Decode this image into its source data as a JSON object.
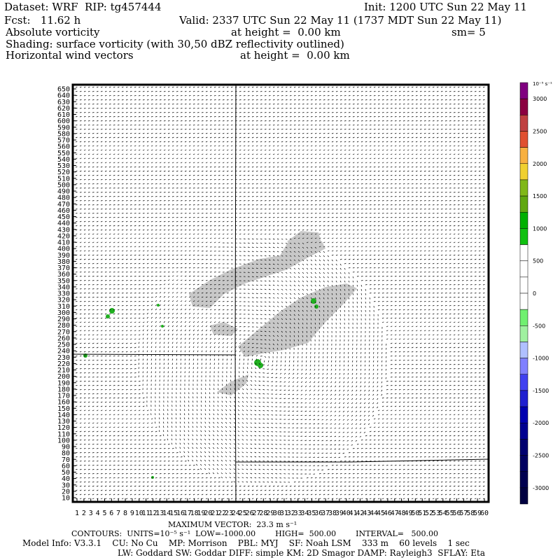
{
  "header": {
    "dataset": "Dataset: WRF  RIP: tg457444",
    "init": "Init: 1200 UTC Sun 22 May 11",
    "fcst": "Fcst:   11.62 h",
    "valid": "Valid: 2337 UTC Sun 22 May 11 (1737 MDT Sun 22 May 11)",
    "field": "Absolute vorticity",
    "field_height": "at height =  0.00 km",
    "smoothing": "sm= 5",
    "shading": "Shading: surface vorticity (with 30,50 dBZ reflectivity outlined)",
    "vectors": "Horizontal wind vectors",
    "vectors_height": "at height =  0.00 km"
  },
  "footer": {
    "max_vector": "MAXIMUM VECTOR:  23.3 m s⁻¹",
    "contours": "CONTOURS:  UNITS=10⁻⁵ s⁻¹  LOW=-1000.00        HIGH=  500.00        INTERVAL=   500.00",
    "model1": "Model Info: V3.3.1    CU: No Cu    MP: Morrison    PBL: MYJ    SF: Noah LSM    333 m    60 levels    1 sec",
    "model2": "LW: Goddard SW: Goddar DIFF: simple KM: 2D Smagor DAMP: Rayleigh3  SFLAY: Eta"
  },
  "chart_data": {
    "type": "heatmap",
    "x_range": [
      1,
      180
    ],
    "y_range": [
      10,
      650
    ],
    "y_ticks": [
      10,
      20,
      30,
      40,
      50,
      60,
      70,
      80,
      90,
      100,
      110,
      120,
      130,
      140,
      150,
      160,
      170,
      180,
      190,
      200,
      210,
      220,
      230,
      240,
      250,
      260,
      270,
      280,
      290,
      300,
      310,
      320,
      330,
      340,
      350,
      360,
      370,
      380,
      390,
      400,
      410,
      420,
      430,
      440,
      450,
      460,
      470,
      480,
      490,
      500,
      510,
      520,
      530,
      540,
      550,
      560,
      570,
      580,
      590,
      600,
      610,
      620,
      630,
      640,
      650
    ],
    "x_ticks": [
      1,
      2,
      3,
      4,
      5,
      6,
      7,
      8,
      9,
      10,
      11,
      12,
      13,
      14,
      15,
      16,
      17,
      18,
      19,
      20,
      21,
      22,
      23,
      24,
      25,
      26,
      27,
      28,
      29,
      30,
      31,
      32,
      33,
      34,
      35,
      36,
      37,
      38,
      39,
      40,
      41,
      42,
      43,
      44,
      45,
      46,
      47,
      48,
      49,
      50,
      51,
      52,
      53,
      54,
      55,
      56,
      57,
      58,
      59,
      60
    ],
    "x_ticks_label_note": "",
    "colorbar": {
      "unit": "10⁻⁵ s⁻¹",
      "levels": [
        {
          "label": "3000",
          "color": "#800080"
        },
        {
          "label": "",
          "color": "#8b0040"
        },
        {
          "label": "2500",
          "color": "#c04040"
        },
        {
          "label": "",
          "color": "#e05030"
        },
        {
          "label": "2000",
          "color": "#f8b040"
        },
        {
          "label": "",
          "color": "#f0d030"
        },
        {
          "label": "1500",
          "color": "#80b818"
        },
        {
          "label": "",
          "color": "#60a810"
        },
        {
          "label": "1000",
          "color": "#00b000"
        },
        {
          "label": "",
          "color": "#10c010"
        },
        {
          "label": "500",
          "color": "#ffffff"
        },
        {
          "label": "",
          "color": "#ffffff"
        },
        {
          "label": "0",
          "color": "#ffffff"
        },
        {
          "label": "",
          "color": "#ffffff"
        },
        {
          "label": "-500",
          "color": "#70f070"
        },
        {
          "label": "",
          "color": "#a0f0a0"
        },
        {
          "label": "-1000",
          "color": "#b0c0ff"
        },
        {
          "label": "",
          "color": "#8080ff"
        },
        {
          "label": "-1500",
          "color": "#4040f0"
        },
        {
          "label": "",
          "color": "#2020d0"
        },
        {
          "label": "-2000",
          "color": "#0000b0"
        },
        {
          "label": "",
          "color": "#000090"
        },
        {
          "label": "-2500",
          "color": "#000070"
        },
        {
          "label": "",
          "color": "#000060"
        },
        {
          "label": "-3000",
          "color": "#000050"
        },
        {
          "label": "",
          "color": "#000040"
        }
      ]
    },
    "reflectivity_color": "#c8c8c8",
    "positive_vorticity_color": "#20b020"
  }
}
